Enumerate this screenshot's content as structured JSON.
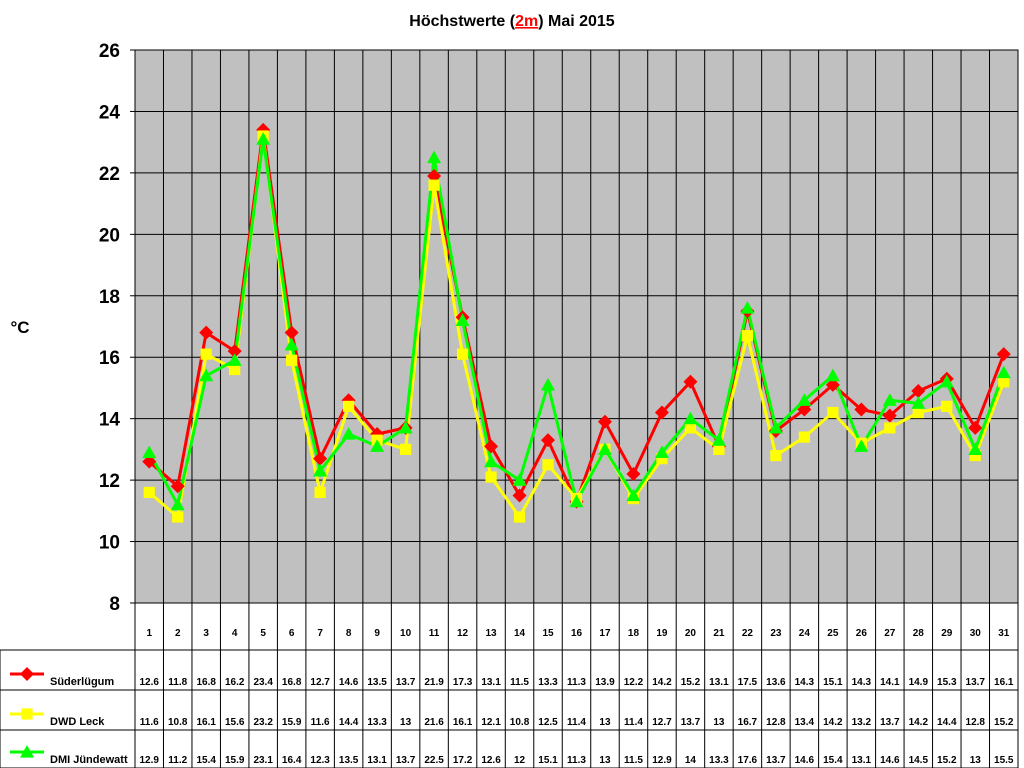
{
  "chart_data": {
    "type": "line",
    "title": [
      "Höchstwerte (",
      "2m",
      ") Mai 2015"
    ],
    "title_highlight_color": "#ff0000",
    "ylabel": "°C",
    "categories": [
      1,
      2,
      3,
      4,
      5,
      6,
      7,
      8,
      9,
      10,
      11,
      12,
      13,
      14,
      15,
      16,
      17,
      18,
      19,
      20,
      21,
      22,
      23,
      24,
      25,
      26,
      27,
      28,
      29,
      30,
      31
    ],
    "ylim": [
      8,
      26
    ],
    "yticks": [
      8,
      10,
      12,
      14,
      16,
      18,
      20,
      22,
      24,
      26
    ],
    "grid": true,
    "background": "#c0c0c0",
    "series": [
      {
        "name": "Süderlügum",
        "color": "#ff0000",
        "marker": "diamond",
        "values": [
          12.6,
          11.8,
          16.8,
          16.2,
          23.4,
          16.8,
          12.7,
          14.6,
          13.5,
          13.7,
          21.9,
          17.3,
          13.1,
          11.5,
          13.3,
          11.3,
          13.9,
          12.2,
          14.2,
          15.2,
          13.1,
          17.5,
          13.6,
          14.3,
          15.1,
          14.3,
          14.1,
          14.9,
          15.3,
          13.7,
          16.1
        ]
      },
      {
        "name": "DWD Leck",
        "color": "#ffff00",
        "marker": "square",
        "values": [
          11.6,
          10.8,
          16.1,
          15.6,
          23.2,
          15.9,
          11.6,
          14.4,
          13.3,
          13,
          21.6,
          16.1,
          12.1,
          10.8,
          12.5,
          11.4,
          13,
          11.4,
          12.7,
          13.7,
          13,
          16.7,
          12.8,
          13.4,
          14.2,
          13.2,
          13.7,
          14.2,
          14.4,
          12.8,
          15.2
        ]
      },
      {
        "name": "DMI Jündewatt",
        "color": "#00ff00",
        "marker": "triangle",
        "values": [
          12.9,
          11.2,
          15.4,
          15.9,
          23.1,
          16.4,
          12.3,
          13.5,
          13.1,
          13.7,
          22.5,
          17.2,
          12.6,
          12,
          15.1,
          11.3,
          13,
          11.5,
          12.9,
          14,
          13.3,
          17.6,
          13.7,
          14.6,
          15.4,
          13.1,
          14.6,
          14.5,
          15.2,
          13,
          15.5
        ]
      }
    ]
  }
}
